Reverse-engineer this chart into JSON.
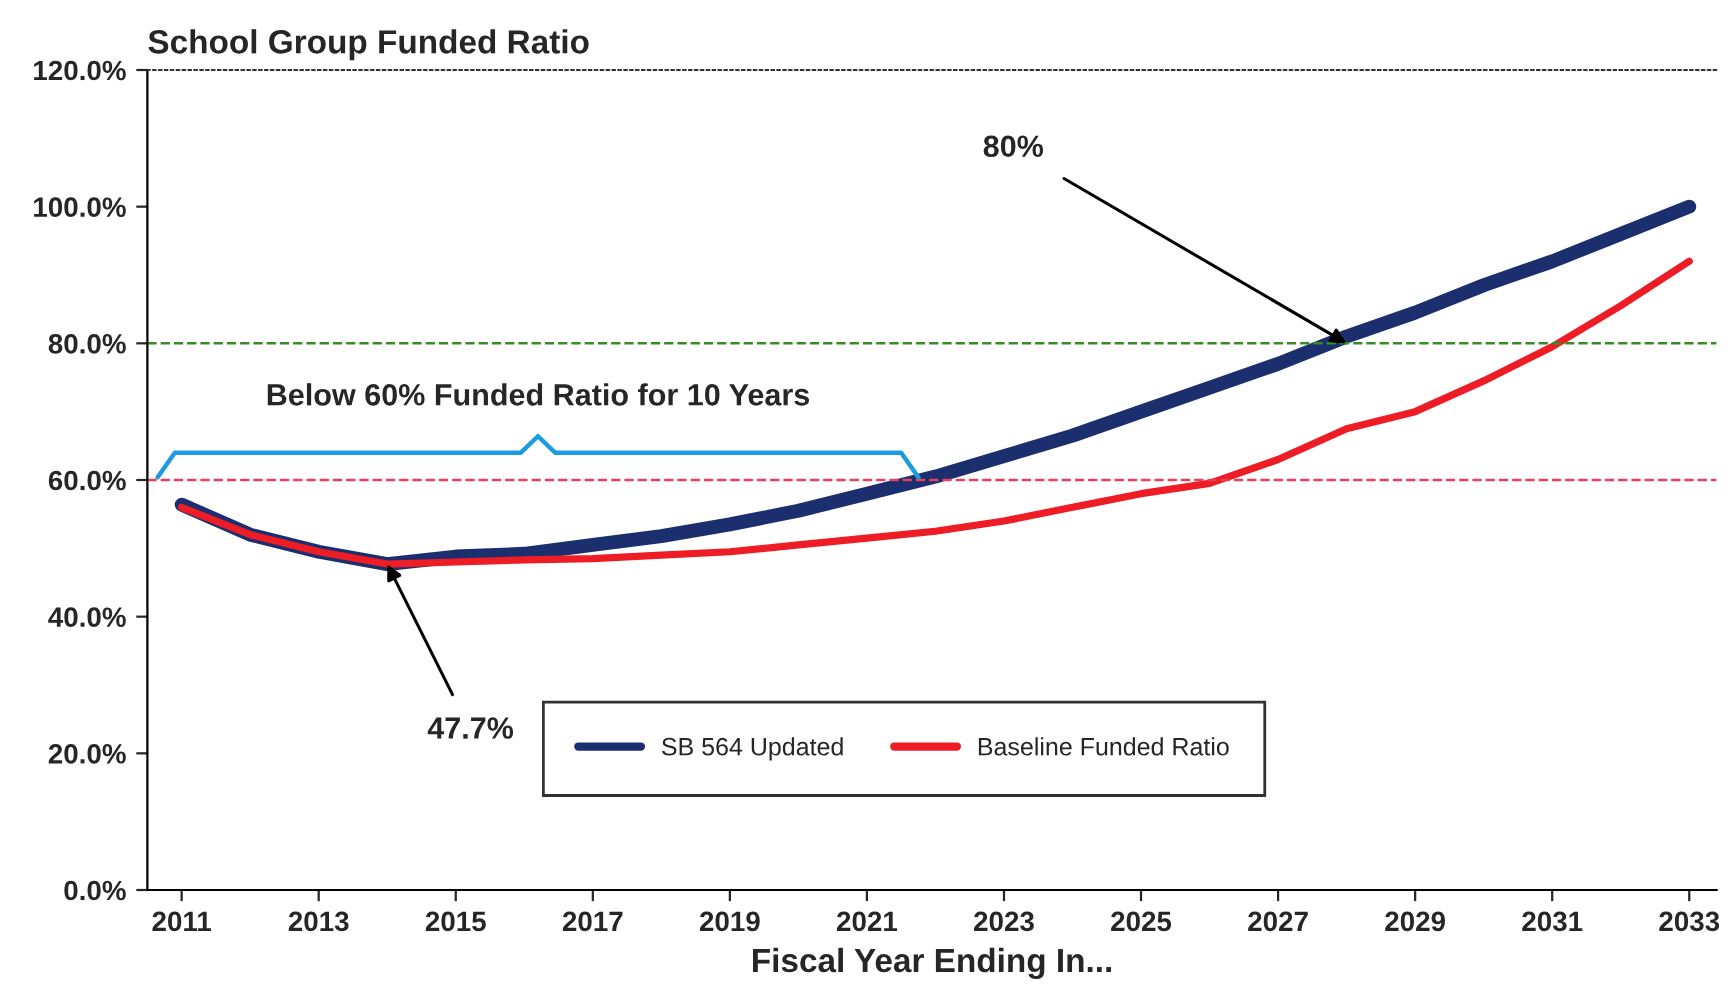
{
  "chart_data": {
    "type": "line",
    "title": "School Group Funded Ratio",
    "xlabel": "Fiscal Year Ending In...",
    "x": [
      2011,
      2012,
      2013,
      2014,
      2015,
      2016,
      2017,
      2018,
      2019,
      2020,
      2021,
      2022,
      2023,
      2024,
      2025,
      2026,
      2027,
      2028,
      2029,
      2030,
      2031,
      2032,
      2033
    ],
    "series": [
      {
        "name": "SB 564 Updated",
        "color": "#1b2f6e",
        "values": [
          56.4,
          52,
          49.5,
          47.7,
          48.8,
          49.2,
          50.5,
          51.8,
          53.5,
          55.5,
          58,
          60.5,
          63.5,
          66.5,
          70,
          73.5,
          77,
          81,
          84.5,
          88.5,
          92,
          96,
          100
        ]
      },
      {
        "name": "Baseline Funded Ratio",
        "color": "#ee1c25",
        "values": [
          56,
          52,
          49.5,
          47.7,
          48,
          48.3,
          48.5,
          49,
          49.5,
          50.5,
          51.5,
          52.5,
          54,
          56,
          58,
          59.5,
          63,
          67.5,
          70,
          74.5,
          79.5,
          85.5,
          92
        ]
      }
    ],
    "xlim": [
      2010.5,
      2033.4
    ],
    "xticks": [
      2011,
      2013,
      2015,
      2017,
      2019,
      2021,
      2023,
      2025,
      2027,
      2029,
      2031,
      2033
    ],
    "ylim": [
      0,
      120
    ],
    "yticks": [
      {
        "value": 0,
        "label": "0.0%"
      },
      {
        "value": 20,
        "label": "20.0%"
      },
      {
        "value": 40,
        "label": "40.0%"
      },
      {
        "value": 60,
        "label": "60.0%"
      },
      {
        "value": 80,
        "label": "80.0%"
      },
      {
        "value": 100,
        "label": "100.0%"
      },
      {
        "value": 120,
        "label": "120.0%"
      }
    ],
    "ref_lines": [
      {
        "axis": "y",
        "value": 80,
        "color": "#3a8a2a",
        "line_style": "dashed"
      },
      {
        "axis": "y",
        "value": 60,
        "color": "#e8405a",
        "line_style": "dashed"
      }
    ],
    "annotations": [
      {
        "text": "80%",
        "x": 2028,
        "y": 80
      },
      {
        "text": "47.7%",
        "x": 2014,
        "y": 47.7
      },
      {
        "text": "Below 60% Funded Ratio for 10 Years",
        "x": 2016.2,
        "y": 60
      }
    ],
    "legend": "bottom right",
    "grid": false,
    "line_style": "solid",
    "marker": "none"
  }
}
